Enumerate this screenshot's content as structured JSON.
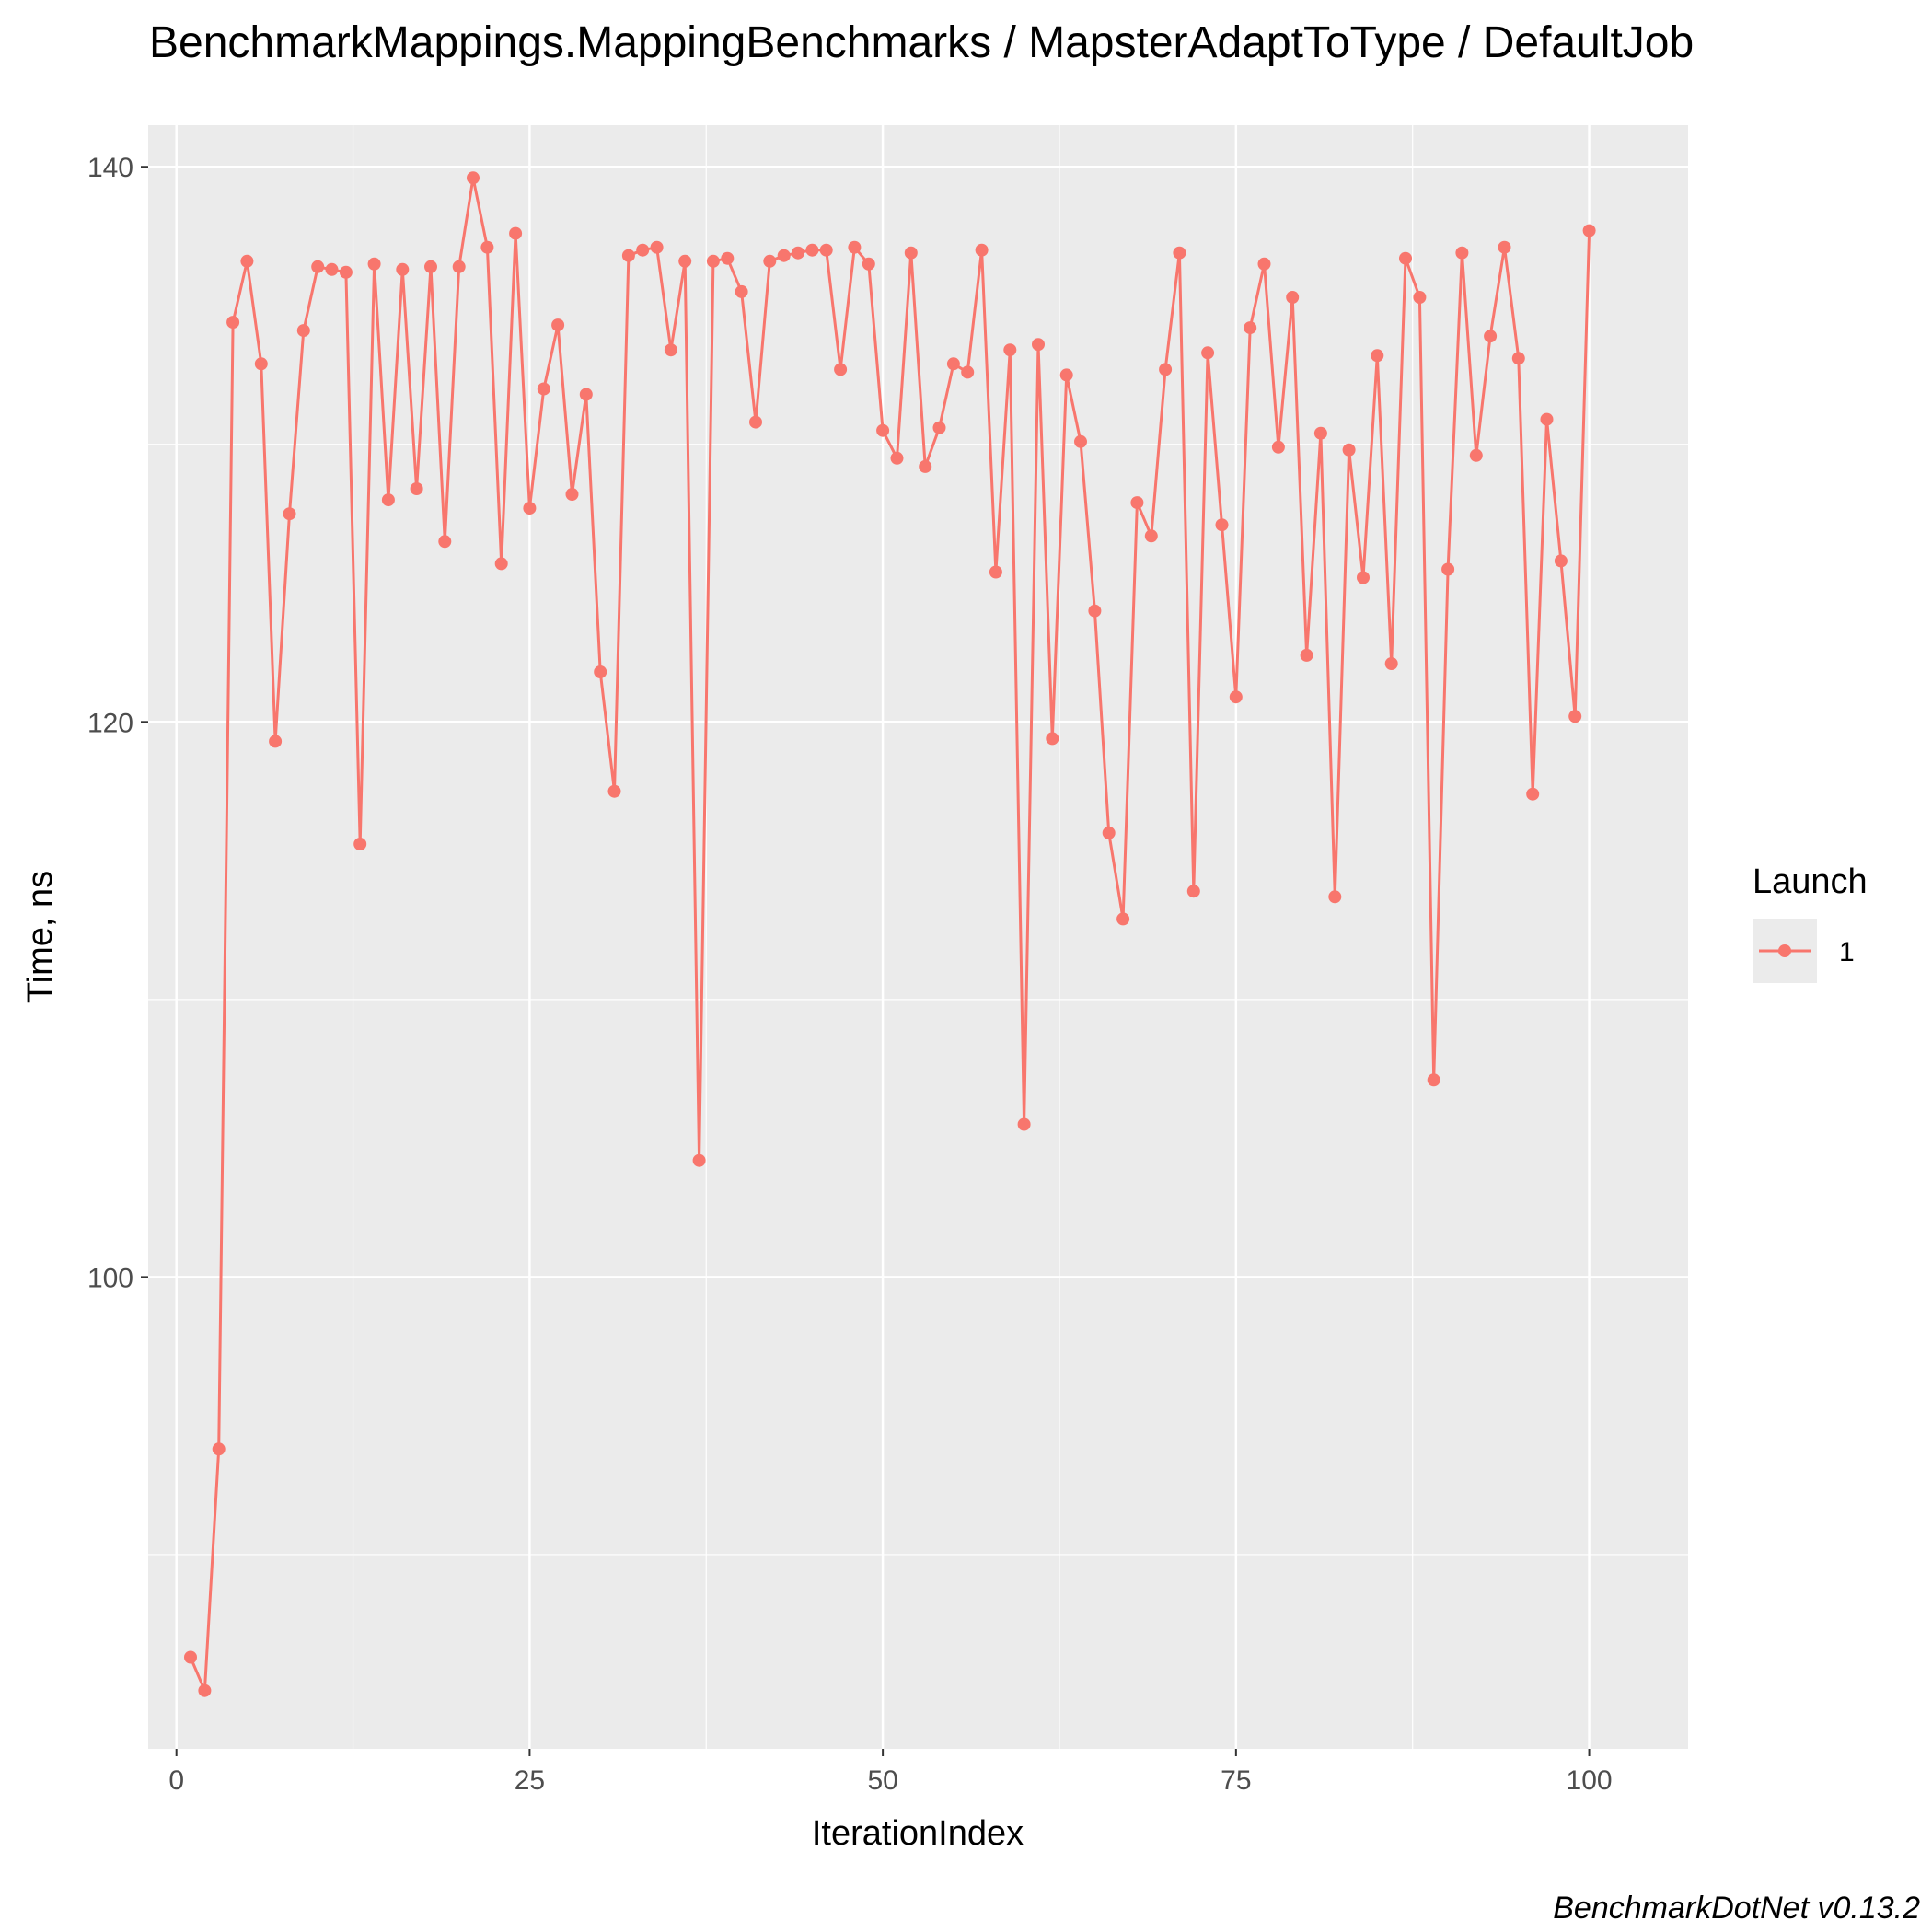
{
  "chart_data": {
    "type": "line",
    "title": "BenchmarkMappings.MappingBenchmarks / MapsterAdaptToType / DefaultJob",
    "xlabel": "IterationIndex",
    "ylabel": "Time, ns",
    "caption": "BenchmarkDotNet v0.13.2",
    "xlim": [
      -2,
      107
    ],
    "ylim": [
      83,
      141.5
    ],
    "x_ticks": [
      0,
      25,
      50,
      75,
      100
    ],
    "y_ticks": [
      100,
      120,
      140
    ],
    "x_tick_labels": [
      "0",
      "25",
      "50",
      "75",
      "100"
    ],
    "y_tick_labels": [
      "100",
      "120",
      "140"
    ],
    "grid": true,
    "legend": {
      "title": "Launch",
      "position": "right"
    },
    "colors": {
      "series": "#F8766D",
      "panel": "#EBEBEB",
      "grid": "#FFFFFF"
    },
    "series": [
      {
        "name": "1",
        "x": [
          1,
          2,
          3,
          4,
          5,
          6,
          7,
          8,
          9,
          10,
          11,
          12,
          13,
          14,
          15,
          16,
          17,
          18,
          19,
          20,
          21,
          22,
          23,
          24,
          25,
          26,
          27,
          28,
          29,
          30,
          31,
          32,
          33,
          34,
          35,
          36,
          37,
          38,
          39,
          40,
          41,
          42,
          43,
          44,
          45,
          46,
          47,
          48,
          49,
          50,
          51,
          52,
          53,
          54,
          55,
          56,
          57,
          58,
          59,
          60,
          61,
          62,
          63,
          64,
          65,
          66,
          67,
          68,
          69,
          70,
          71,
          72,
          73,
          74,
          75,
          76,
          77,
          78,
          79,
          80,
          81,
          82,
          83,
          84,
          85,
          86,
          87,
          88,
          89,
          90,
          91,
          92,
          93,
          94,
          95,
          96,
          97,
          98,
          99,
          100
        ],
        "y": [
          86.3,
          85.1,
          93.8,
          134.4,
          136.6,
          132.9,
          119.3,
          127.5,
          134.1,
          136.4,
          136.3,
          136.2,
          115.6,
          136.5,
          128.0,
          136.3,
          128.4,
          136.4,
          126.5,
          136.4,
          139.6,
          137.1,
          125.7,
          137.6,
          127.7,
          132.0,
          134.3,
          128.2,
          131.8,
          121.8,
          117.5,
          136.8,
          137.0,
          137.1,
          133.4,
          136.6,
          104.2,
          136.6,
          136.7,
          135.5,
          130.8,
          136.6,
          136.8,
          136.9,
          137.0,
          137.0,
          132.7,
          137.1,
          136.5,
          130.5,
          129.5,
          136.9,
          129.2,
          130.6,
          132.9,
          132.6,
          137.0,
          125.4,
          133.4,
          105.5,
          133.6,
          119.4,
          132.5,
          130.1,
          124.0,
          116.0,
          112.9,
          127.9,
          126.7,
          132.7,
          136.9,
          113.9,
          133.3,
          127.1,
          120.9,
          134.2,
          136.5,
          129.9,
          135.3,
          122.4,
          130.4,
          113.7,
          129.8,
          125.2,
          133.2,
          122.1,
          136.7,
          135.3,
          107.1,
          125.5,
          136.9,
          129.6,
          133.9,
          137.1,
          133.1,
          117.4,
          130.9,
          125.8,
          120.2,
          137.7
        ]
      }
    ]
  }
}
